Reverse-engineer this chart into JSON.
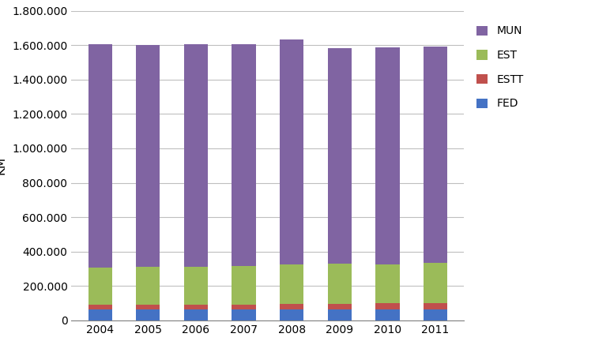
{
  "years": [
    "2004",
    "2005",
    "2006",
    "2007",
    "2008",
    "2009",
    "2010",
    "2011"
  ],
  "FED": [
    62000,
    62000,
    62000,
    62000,
    65000,
    65000,
    65000,
    65000
  ],
  "ESTT": [
    28000,
    28000,
    28000,
    28000,
    30000,
    32000,
    35000,
    36000
  ],
  "EST": [
    215000,
    222000,
    223000,
    224000,
    228000,
    232000,
    226000,
    232000
  ],
  "MUN": [
    1300000,
    1290000,
    1290000,
    1290000,
    1310000,
    1255000,
    1260000,
    1260000
  ],
  "colors": {
    "FED": "#4472C4",
    "ESTT": "#C0504D",
    "EST": "#9BBB59",
    "MUN": "#8064A2"
  },
  "ylabel": "KM",
  "ylim": [
    0,
    1800000
  ],
  "ytick_step": 200000,
  "background_color": "#ffffff",
  "grid_color": "#bfbfbf"
}
